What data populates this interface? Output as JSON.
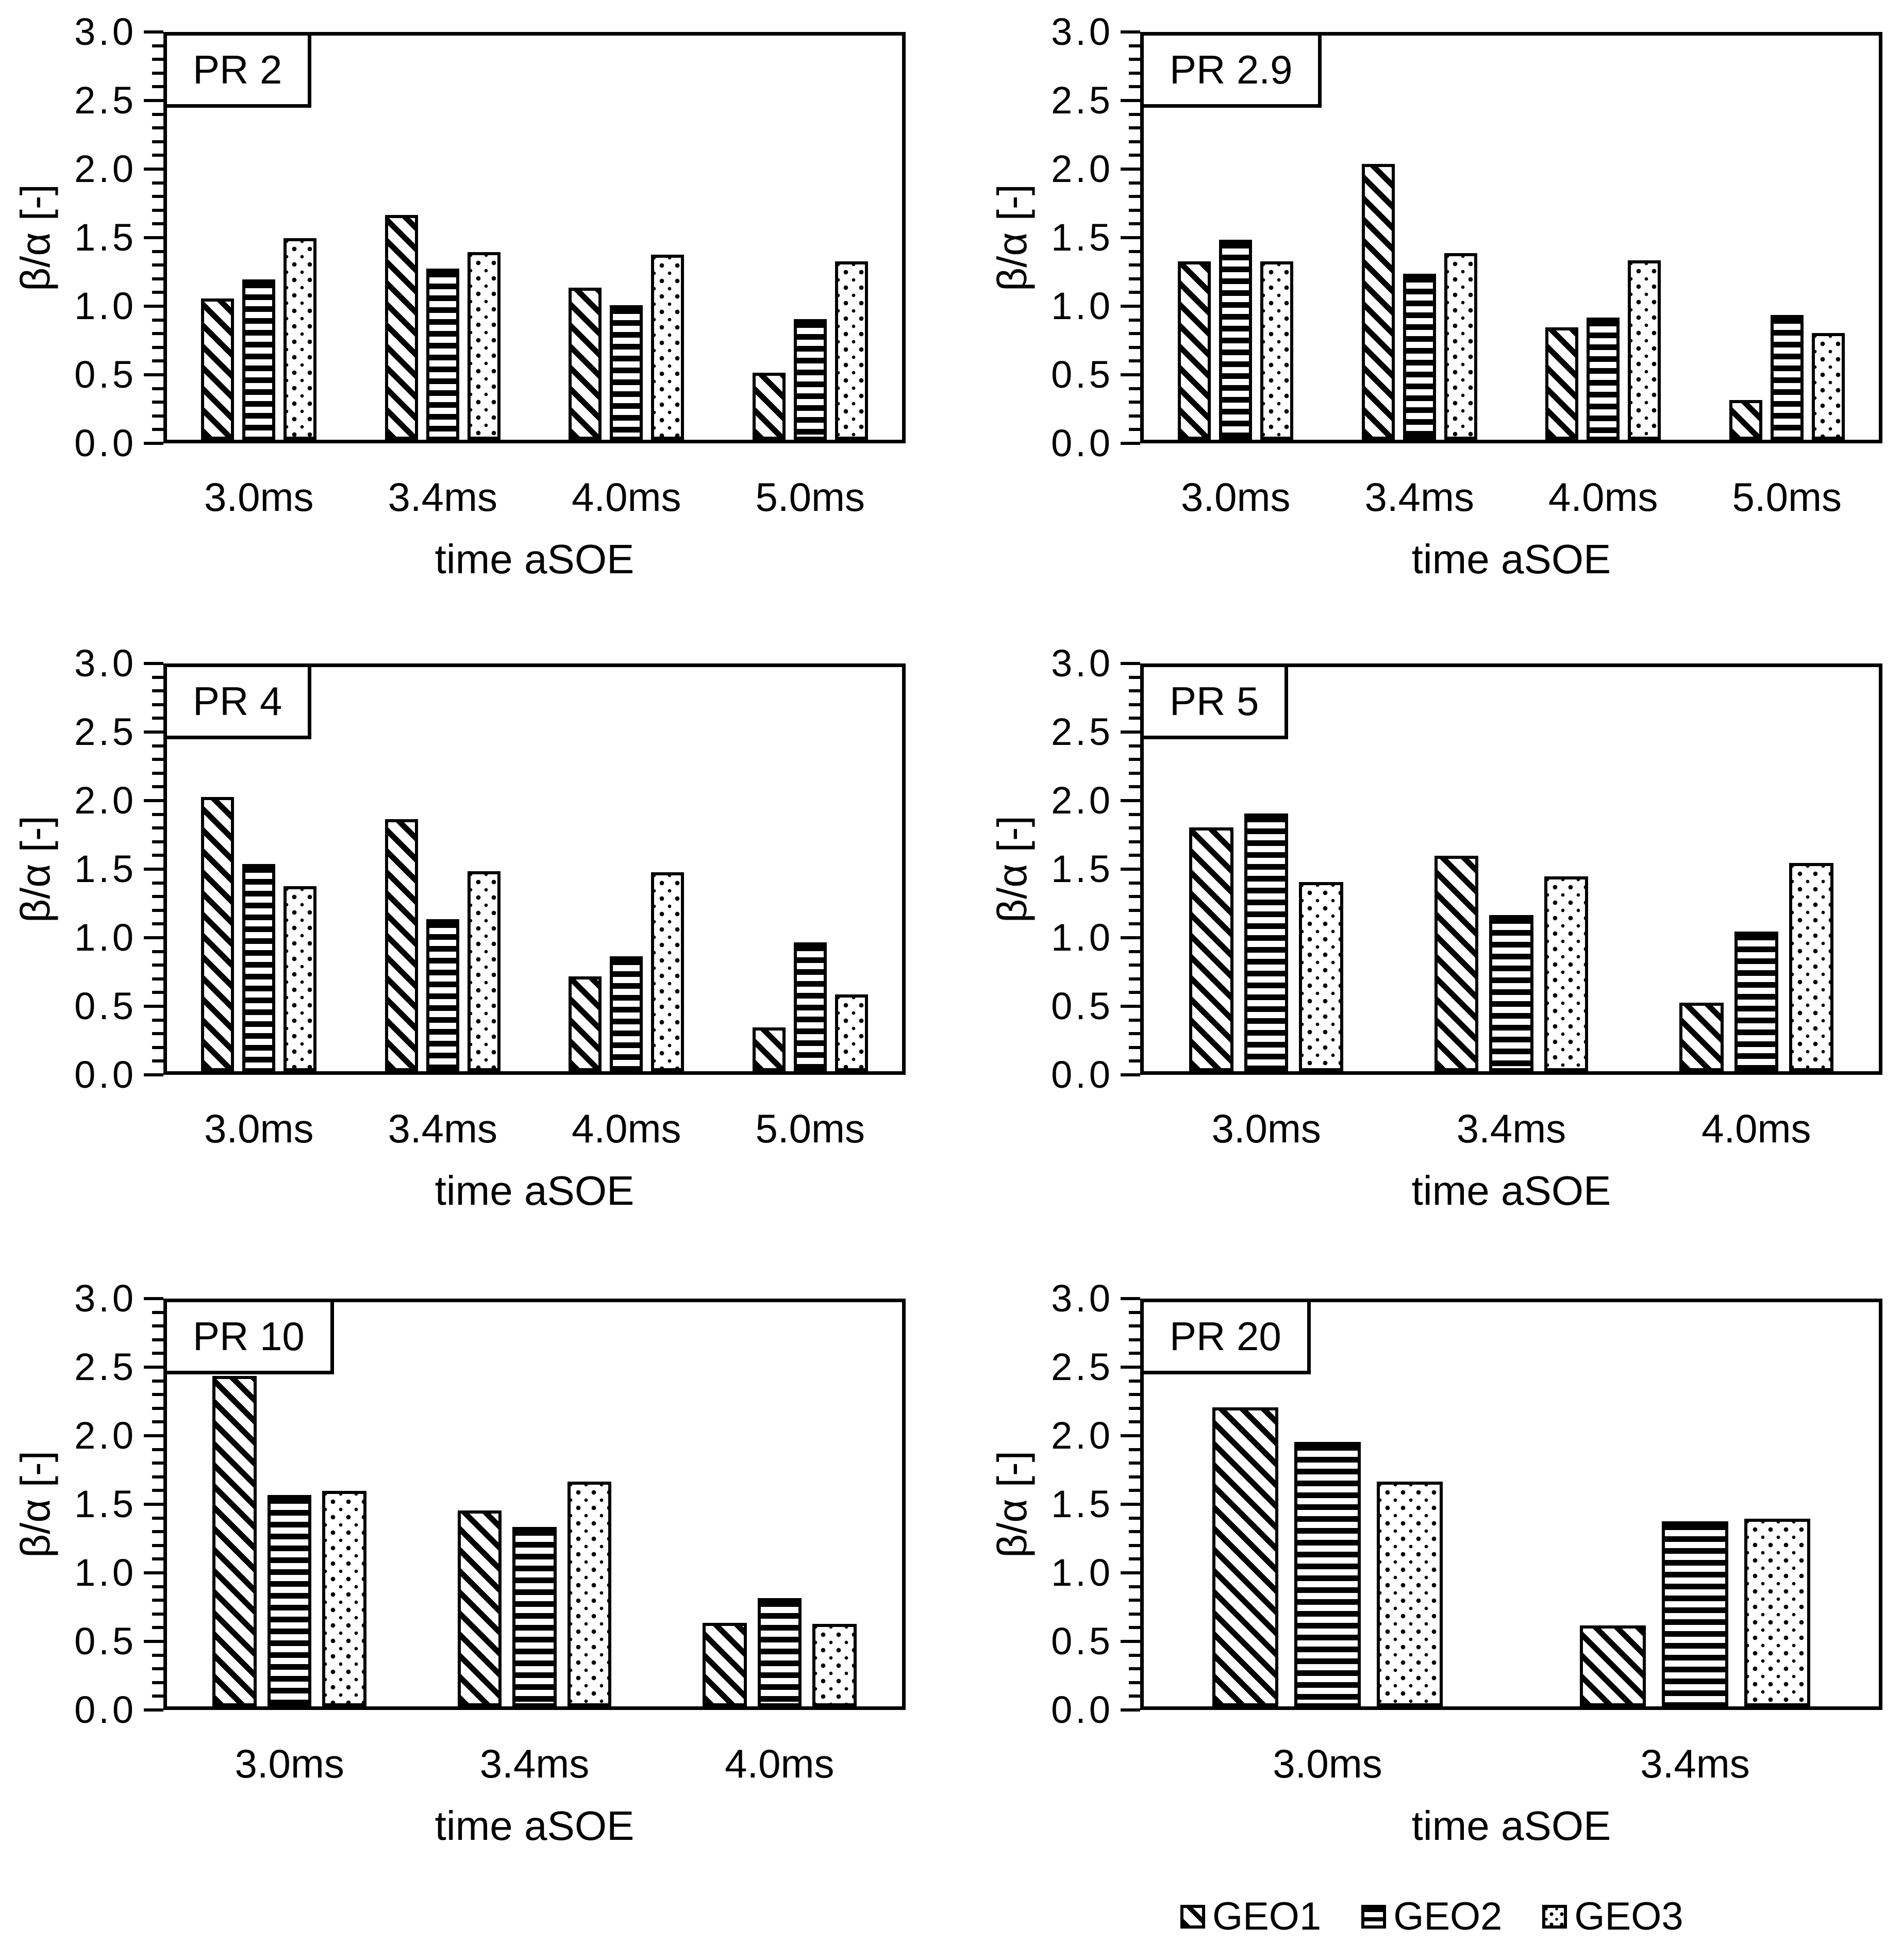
{
  "figure": {
    "ylabel": "β/α [-]",
    "xlabel": "time aSOE",
    "ylim": [
      0,
      3
    ],
    "ytick_labels": [
      "0.0",
      "0.5",
      "1.0",
      "1.5",
      "2.0",
      "2.5",
      "3.0"
    ],
    "minor_tick_step": 0.1,
    "grid": false,
    "colors": {
      "foreground": "#000000",
      "background": "#ffffff"
    },
    "legend": [
      {
        "name": "GEO1",
        "pattern": "diagonal-hatch"
      },
      {
        "name": "GEO2",
        "pattern": "horizontal-stripes"
      },
      {
        "name": "GEO3",
        "pattern": "dots"
      }
    ],
    "legend_position": "bottom-right"
  },
  "chart_data": [
    {
      "type": "bar",
      "title": "PR 2",
      "categories": [
        "3.0ms",
        "3.4ms",
        "4.0ms",
        "5.0ms"
      ],
      "series": [
        {
          "name": "GEO1",
          "values": [
            1.03,
            1.64,
            1.11,
            0.49
          ]
        },
        {
          "name": "GEO2",
          "values": [
            1.17,
            1.25,
            0.98,
            0.88
          ]
        },
        {
          "name": "GEO3",
          "values": [
            1.47,
            1.37,
            1.35,
            1.3
          ]
        }
      ],
      "xlabel": "time aSOE",
      "ylabel": "β/α [-]",
      "ylim": [
        0,
        3
      ]
    },
    {
      "type": "bar",
      "title": "PR 2.9",
      "categories": [
        "3.0ms",
        "3.4ms",
        "4.0ms",
        "5.0ms"
      ],
      "series": [
        {
          "name": "GEO1",
          "values": [
            1.3,
            2.01,
            0.82,
            0.29
          ]
        },
        {
          "name": "GEO2",
          "values": [
            1.46,
            1.21,
            0.89,
            0.91
          ]
        },
        {
          "name": "GEO3",
          "values": [
            1.3,
            1.36,
            1.31,
            0.78
          ]
        }
      ],
      "xlabel": "time aSOE",
      "ylabel": "β/α [-]",
      "ylim": [
        0,
        3
      ]
    },
    {
      "type": "bar",
      "title": "PR 4",
      "categories": [
        "3.0ms",
        "3.4ms",
        "4.0ms",
        "5.0ms"
      ],
      "series": [
        {
          "name": "GEO1",
          "values": [
            2.0,
            1.84,
            0.69,
            0.32
          ]
        },
        {
          "name": "GEO2",
          "values": [
            1.51,
            1.11,
            0.84,
            0.94
          ]
        },
        {
          "name": "GEO3",
          "values": [
            1.35,
            1.46,
            1.45,
            0.56
          ]
        }
      ],
      "xlabel": "time aSOE",
      "ylabel": "β/α [-]",
      "ylim": [
        0,
        3
      ]
    },
    {
      "type": "bar",
      "title": "PR 5",
      "categories": [
        "3.0ms",
        "3.4ms",
        "4.0ms"
      ],
      "series": [
        {
          "name": "GEO1",
          "values": [
            1.78,
            1.57,
            0.5
          ]
        },
        {
          "name": "GEO2",
          "values": [
            1.88,
            1.14,
            1.02
          ]
        },
        {
          "name": "GEO3",
          "values": [
            1.38,
            1.42,
            1.52
          ]
        }
      ],
      "xlabel": "time aSOE",
      "ylabel": "β/α [-]",
      "ylim": [
        0,
        3
      ]
    },
    {
      "type": "bar",
      "title": "PR 10",
      "categories": [
        "3.0ms",
        "3.4ms",
        "4.0ms"
      ],
      "series": [
        {
          "name": "GEO1",
          "values": [
            2.41,
            1.43,
            0.61
          ]
        },
        {
          "name": "GEO2",
          "values": [
            1.54,
            1.31,
            0.79
          ]
        },
        {
          "name": "GEO3",
          "values": [
            1.57,
            1.64,
            0.6
          ]
        }
      ],
      "xlabel": "time aSOE",
      "ylabel": "β/α [-]",
      "ylim": [
        0,
        3
      ]
    },
    {
      "type": "bar",
      "title": "PR 20",
      "categories": [
        "3.0ms",
        "3.4ms"
      ],
      "series": [
        {
          "name": "GEO1",
          "values": [
            2.18,
            0.59
          ]
        },
        {
          "name": "GEO2",
          "values": [
            1.93,
            1.35
          ]
        },
        {
          "name": "GEO3",
          "values": [
            1.64,
            1.37
          ]
        }
      ],
      "xlabel": "time aSOE",
      "ylabel": "β/α [-]",
      "ylim": [
        0,
        3
      ]
    }
  ]
}
